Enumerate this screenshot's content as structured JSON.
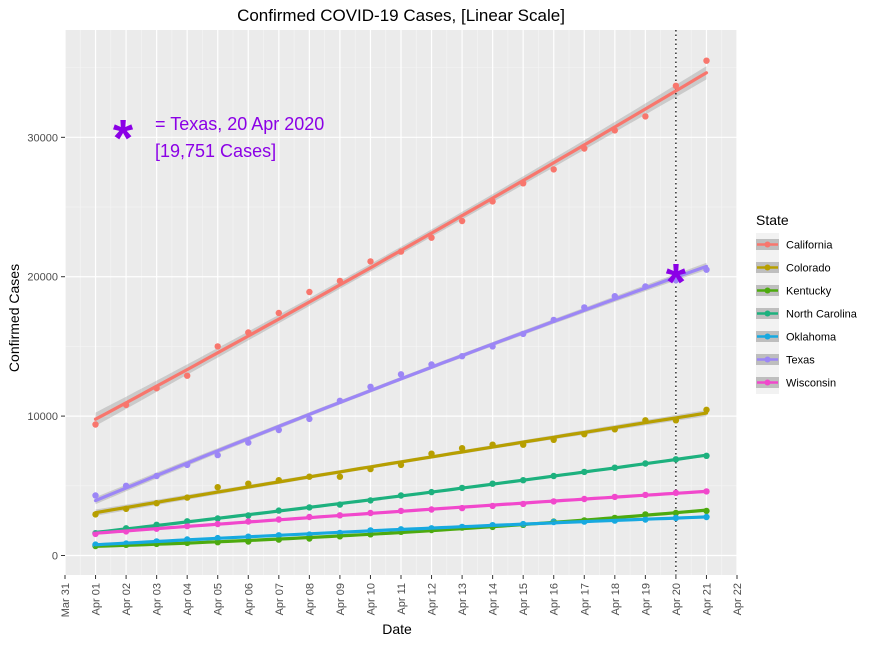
{
  "chart_data": {
    "type": "scatter",
    "title": "Confirmed COVID-19 Cases, [Linear Scale]",
    "xlabel": "Date",
    "ylabel": "Confirmed Cases",
    "x_ticks": [
      "Mar 31",
      "Apr 01",
      "Apr 02",
      "Apr 03",
      "Apr 04",
      "Apr 05",
      "Apr 06",
      "Apr 07",
      "Apr 08",
      "Apr 09",
      "Apr 10",
      "Apr 11",
      "Apr 12",
      "Apr 13",
      "Apr 14",
      "Apr 15",
      "Apr 16",
      "Apr 17",
      "Apr 18",
      "Apr 19",
      "Apr 20",
      "Apr 21",
      "Apr 22"
    ],
    "y_ticks": [
      0,
      10000,
      20000,
      30000
    ],
    "xlim": [
      "2020-03-31",
      "2020-04-22"
    ],
    "ylim": [
      -1400,
      37700
    ],
    "grid": true,
    "legend": {
      "title": "State",
      "placement": "right"
    },
    "vline": {
      "x": "2020-04-20",
      "style": "dotted"
    },
    "annotation": {
      "symbol": "*",
      "line1": "= Texas, 20 Apr 2020",
      "line2": "[19,751 Cases]",
      "color": "#8B00E6",
      "marker": {
        "x": "2020-04-20",
        "y": 19751
      }
    },
    "x": [
      "2020-04-01",
      "2020-04-02",
      "2020-04-03",
      "2020-04-04",
      "2020-04-05",
      "2020-04-06",
      "2020-04-07",
      "2020-04-08",
      "2020-04-09",
      "2020-04-10",
      "2020-04-11",
      "2020-04-12",
      "2020-04-13",
      "2020-04-14",
      "2020-04-15",
      "2020-04-16",
      "2020-04-17",
      "2020-04-18",
      "2020-04-19",
      "2020-04-20",
      "2020-04-21"
    ],
    "series": [
      {
        "name": "California",
        "color": "#F8766D",
        "values": [
          9400,
          10800,
          12000,
          12900,
          15000,
          16000,
          17400,
          18900,
          19700,
          21100,
          21800,
          22800,
          24000,
          25400,
          26700,
          27700,
          29200,
          30500,
          31500,
          33700,
          35500
        ]
      },
      {
        "name": "Colorado",
        "color": "#B79F00",
        "values": [
          2950,
          3350,
          3750,
          4150,
          4900,
          5150,
          5400,
          5650,
          5650,
          6200,
          6500,
          7300,
          7700,
          7950,
          7950,
          8300,
          8700,
          9050,
          9700,
          9700,
          10450
        ]
      },
      {
        "name": "Kentucky",
        "color": "#4DAA0E",
        "values": [
          680,
          770,
          830,
          900,
          950,
          1000,
          1140,
          1220,
          1380,
          1520,
          1700,
          1830,
          2000,
          2050,
          2200,
          2430,
          2520,
          2700,
          2950,
          3050,
          3200
        ]
      },
      {
        "name": "North Carolina",
        "color": "#1DB17E",
        "values": [
          1600,
          1950,
          2200,
          2450,
          2650,
          2870,
          3220,
          3450,
          3650,
          3950,
          4300,
          4550,
          4850,
          5150,
          5400,
          5700,
          6000,
          6300,
          6600,
          6900,
          7150
        ]
      },
      {
        "name": "Oklahoma",
        "color": "#17A9E0",
        "values": [
          780,
          850,
          1010,
          1150,
          1250,
          1350,
          1450,
          1500,
          1620,
          1800,
          1880,
          1950,
          2050,
          2170,
          2250,
          2400,
          2430,
          2500,
          2580,
          2690,
          2760
        ]
      },
      {
        "name": "Texas",
        "color": "#9C86F6",
        "values": [
          4300,
          5000,
          5700,
          6500,
          7200,
          8100,
          9000,
          9800,
          11100,
          12100,
          13000,
          13700,
          14300,
          15000,
          15900,
          16900,
          17800,
          18600,
          19300,
          19751,
          20500
        ]
      },
      {
        "name": "Wisconsin",
        "color": "#F148CC",
        "values": [
          1550,
          1730,
          1920,
          2110,
          2260,
          2440,
          2580,
          2760,
          2880,
          3050,
          3200,
          3300,
          3400,
          3560,
          3700,
          3880,
          4050,
          4200,
          4350,
          4500,
          4600
        ]
      }
    ]
  }
}
